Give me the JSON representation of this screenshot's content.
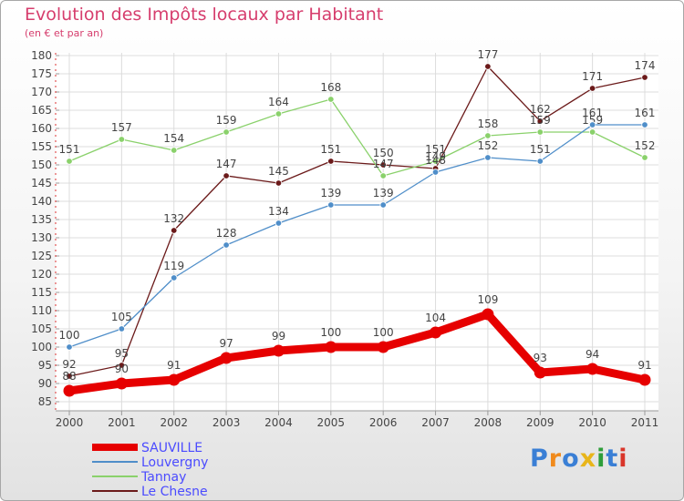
{
  "title": "Evolution des Impôts locaux par Habitant",
  "subtitle": "(en € et par an)",
  "brand": "Proxiti",
  "colors": {
    "title": "#d63d6d",
    "grid": "#dcdcdc",
    "axis": "#9a9a9a",
    "label": "#444444"
  },
  "chart_data": {
    "type": "line",
    "title": "Evolution des Impôts locaux par Habitant",
    "subtitle": "(en € et par an)",
    "xlabel": "",
    "ylabel": "",
    "ylim": [
      85,
      180
    ],
    "yticks": [
      85,
      90,
      95,
      100,
      105,
      110,
      115,
      120,
      125,
      130,
      135,
      140,
      145,
      150,
      155,
      160,
      165,
      170,
      175,
      180
    ],
    "categories": [
      "2000",
      "2001",
      "2002",
      "2003",
      "2004",
      "2005",
      "2006",
      "2007",
      "2008",
      "2009",
      "2010",
      "2011"
    ],
    "grid": true,
    "legend_position": "bottom-left",
    "series": [
      {
        "name": "Le Chesne",
        "color": "#6b1a1a",
        "values": [
          92,
          95,
          132,
          147,
          145,
          151,
          150,
          149,
          177,
          162,
          171,
          174
        ],
        "labels": [
          "92",
          "95",
          "132",
          "147",
          "145",
          "151",
          "150",
          "149",
          "177",
          "162",
          "171",
          "174"
        ]
      },
      {
        "name": "Tannay",
        "color": "#8ad16b",
        "values": [
          151,
          157,
          154,
          159,
          164,
          168,
          147,
          151,
          158,
          159,
          159,
          152
        ],
        "labels": [
          "151",
          "157",
          "154",
          "159",
          "164",
          "168",
          "147",
          "151",
          "158",
          "159",
          "159",
          "152"
        ]
      },
      {
        "name": "Louvergny",
        "color": "#4f8ec9",
        "values": [
          100,
          105,
          119,
          128,
          134,
          139,
          139,
          148,
          152,
          151,
          161,
          161
        ],
        "labels": [
          "100",
          "105",
          "119",
          "128",
          "134",
          "139",
          "139",
          "148",
          "152",
          "151",
          "161",
          "161"
        ]
      },
      {
        "name": "SAUVILLE",
        "color": "#e60000",
        "values": [
          88,
          90,
          91,
          97,
          99,
          100,
          100,
          104,
          109,
          93,
          94,
          91
        ],
        "labels": [
          "88",
          "90",
          "91",
          "97",
          "99",
          "100",
          "100",
          "104",
          "109",
          "93",
          "94",
          "91"
        ]
      }
    ]
  },
  "legend": [
    {
      "name": "SAUVILLE",
      "color": "#e60000",
      "thickness": "thick"
    },
    {
      "name": "Louvergny",
      "color": "#4f8ec9",
      "thickness": "thin"
    },
    {
      "name": "Tannay",
      "color": "#8ad16b",
      "thickness": "thin"
    },
    {
      "name": "Le Chesne",
      "color": "#6b1a1a",
      "thickness": "thin"
    }
  ]
}
